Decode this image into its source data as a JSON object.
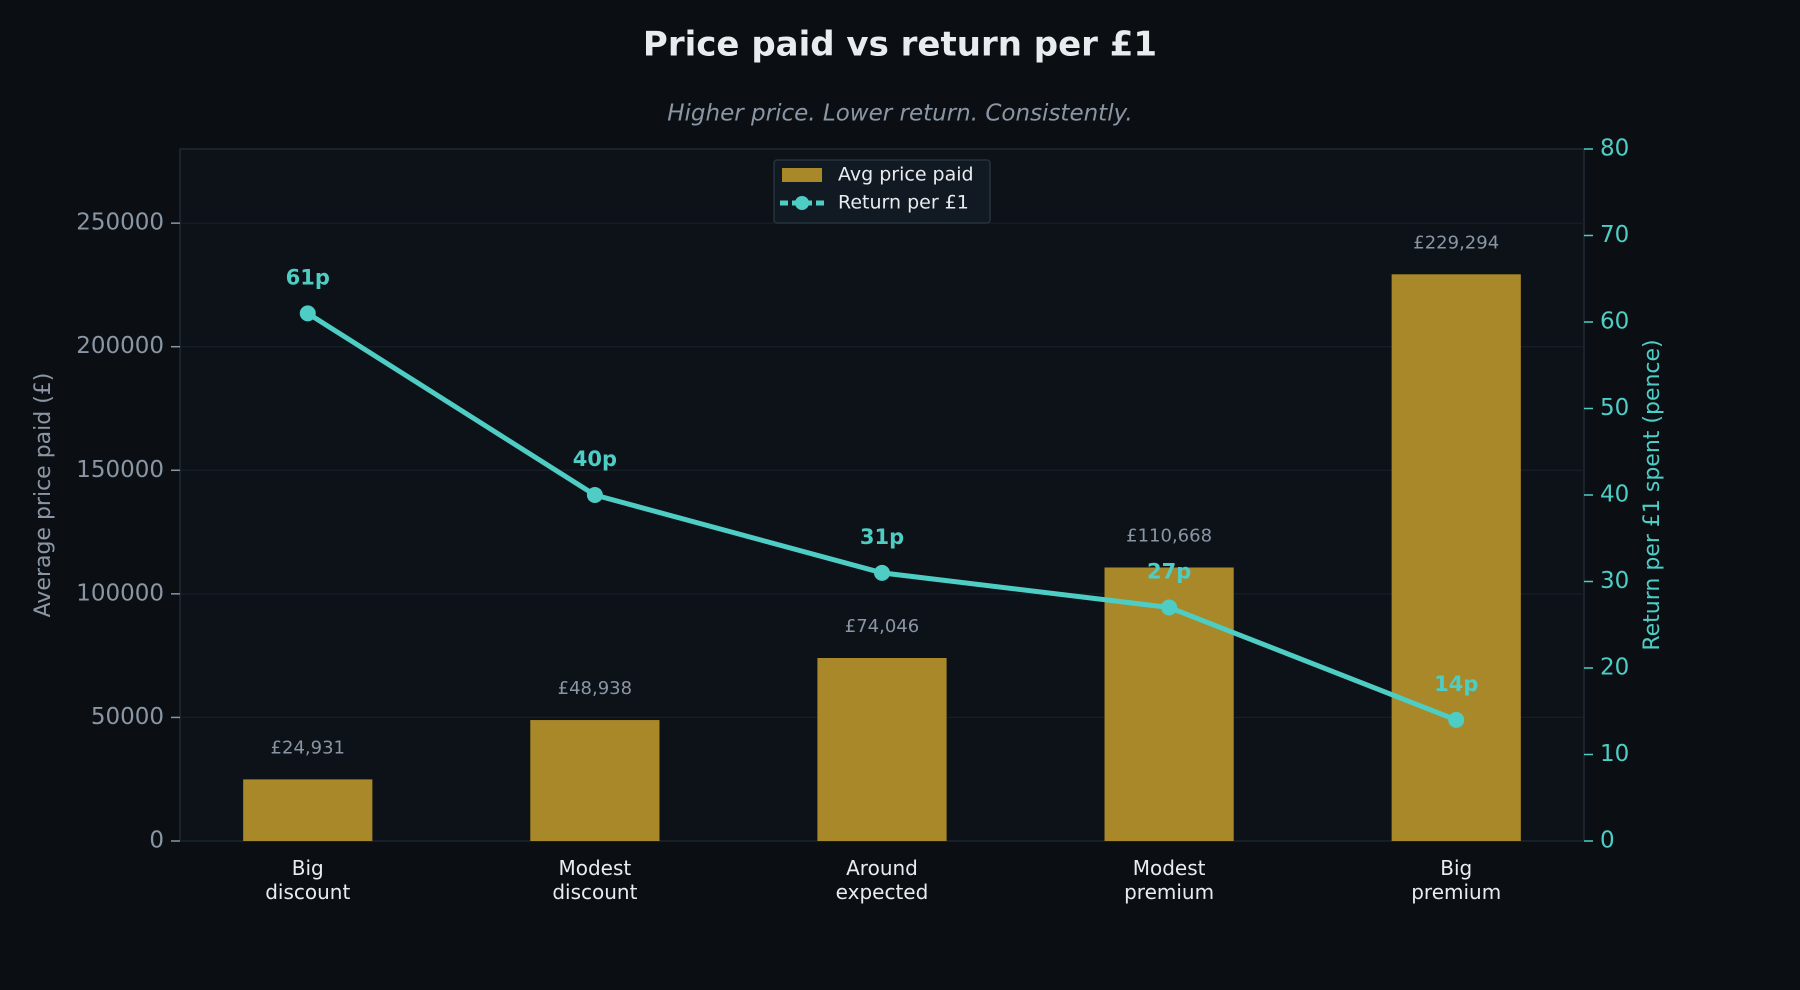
{
  "chart_data": {
    "type": "bar_line",
    "title": "Price paid vs return per £1",
    "subtitle": "Higher price. Lower return. Consistently.",
    "y_label": "Average price paid (£)",
    "y2_label": "Return per £1 spent (pence)",
    "categories": [
      "Big discount",
      "Modest discount",
      "Around expected",
      "Modest premium",
      "Big premium"
    ],
    "series": [
      {
        "name": "Avg price paid",
        "type": "bar",
        "color": "#a9882a",
        "values": [
          24931,
          48938,
          74046,
          110668,
          229294
        ],
        "value_labels": [
          "£24,931",
          "£48,938",
          "£74,046",
          "£110,668",
          "£229,294"
        ]
      },
      {
        "name": "Return per £1",
        "type": "line",
        "axis": "y2",
        "color": "#4ecdc4",
        "values": [
          61,
          40,
          31,
          27,
          14
        ],
        "value_labels": [
          "61p",
          "40p",
          "31p",
          "27p",
          "14p"
        ]
      }
    ],
    "ylim": [
      0,
      280000
    ],
    "yticks": [
      0,
      50000,
      100000,
      150000,
      200000,
      250000
    ],
    "y2lim": [
      0,
      80
    ],
    "y2ticks": [
      0,
      10,
      20,
      30,
      40,
      50,
      60,
      70,
      80
    ],
    "grid": true,
    "legend": "upper center"
  }
}
